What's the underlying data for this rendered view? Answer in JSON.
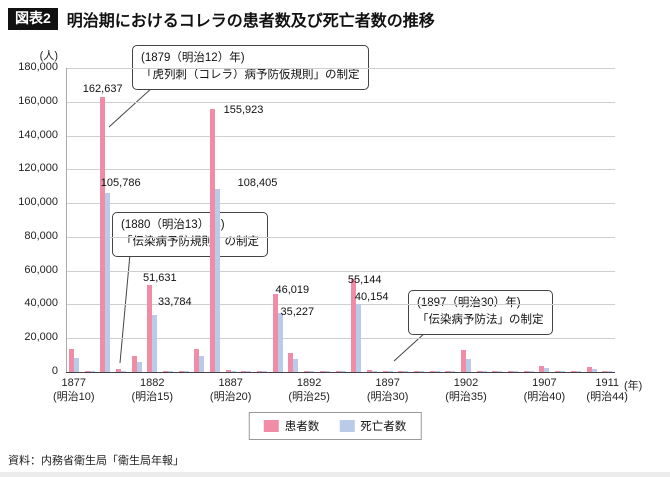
{
  "header": {
    "badge": "図表2",
    "title": "明治期におけるコレラの患者数及び死亡者数の推移"
  },
  "source": "資料：内務省衛生局「衛生局年報」",
  "legend": {
    "patients": "患者数",
    "deaths": "死亡者数"
  },
  "colors": {
    "patients": "#f08ca6",
    "deaths": "#b9cbe8",
    "grid": "#cfcfcf",
    "axis": "#444444"
  },
  "chart_data": {
    "type": "bar",
    "title": "明治期におけるコレラの患者数及び死亡者数の推移",
    "y_unit": "(人)",
    "x_unit": "(年)",
    "ylim": [
      0,
      180000
    ],
    "y_tick_step": 20000,
    "y_tick_labels": [
      "0",
      "20,000",
      "40,000",
      "60,000",
      "80,000",
      "100,000",
      "120,000",
      "140,000",
      "160,000",
      "180,000"
    ],
    "grid": true,
    "legend_position": "bottom",
    "years": [
      1877,
      1878,
      1879,
      1880,
      1881,
      1882,
      1883,
      1884,
      1885,
      1886,
      1887,
      1888,
      1889,
      1890,
      1891,
      1892,
      1893,
      1894,
      1895,
      1896,
      1897,
      1898,
      1899,
      1900,
      1901,
      1902,
      1903,
      1904,
      1905,
      1906,
      1907,
      1908,
      1909,
      1910,
      1911
    ],
    "series": [
      {
        "name": "患者数",
        "values": [
          13816,
          902,
          162637,
          1580,
          9389,
          51631,
          669,
          904,
          13824,
          155923,
          1228,
          811,
          751,
          46019,
          11142,
          874,
          633,
          546,
          55144,
          1481,
          894,
          655,
          829,
          378,
          457,
          12891,
          172,
          246,
          315,
          355,
          3632,
          652,
          328,
          2849,
          374
        ]
      },
      {
        "name": "死亡者数",
        "values": [
          8027,
          275,
          105786,
          618,
          6237,
          33784,
          434,
          417,
          9329,
          108405,
          654,
          410,
          431,
          35227,
          7760,
          497,
          364,
          314,
          40154,
          908,
          488,
          374,
          487,
          231,
          274,
          8012,
          103,
          148,
          189,
          213,
          2446,
          391,
          197,
          1701,
          214
        ]
      }
    ],
    "x_ticks": [
      {
        "year": "1877",
        "era": "(明治10)"
      },
      {
        "year": "1882",
        "era": "(明治15)"
      },
      {
        "year": "1887",
        "era": "(明治20)"
      },
      {
        "year": "1892",
        "era": "(明治25)"
      },
      {
        "year": "1897",
        "era": "(明治30)"
      },
      {
        "year": "1902",
        "era": "(明治35)"
      },
      {
        "year": "1907",
        "era": "(明治40)"
      },
      {
        "year": "1911",
        "era": "(明治44)"
      }
    ],
    "bar_labels": [
      {
        "year": 1879,
        "series": "patients",
        "text": "162,637"
      },
      {
        "year": 1879,
        "series": "deaths",
        "text": "105,786"
      },
      {
        "year": 1882,
        "series": "patients",
        "text": "51,631"
      },
      {
        "year": 1882,
        "series": "deaths",
        "text": "33,784"
      },
      {
        "year": 1886,
        "series": "patients",
        "text": "155,923"
      },
      {
        "year": 1886,
        "series": "deaths",
        "text": "108,405"
      },
      {
        "year": 1890,
        "series": "patients",
        "text": "46,019"
      },
      {
        "year": 1890,
        "series": "deaths",
        "text": "35,227"
      },
      {
        "year": 1895,
        "series": "patients",
        "text": "55,144"
      },
      {
        "year": 1895,
        "series": "deaths",
        "text": "40,154"
      }
    ],
    "annotations": [
      {
        "line1": "(1879（明治12）年)",
        "line2": "「虎列刺（コレラ）病予防仮規則」の制定"
      },
      {
        "line1": "(1880（明治13）年)",
        "line2": "「伝染病予防規則」の制定"
      },
      {
        "line1": "(1897（明治30）年)",
        "line2": "「伝染病予防法」の制定"
      }
    ]
  }
}
